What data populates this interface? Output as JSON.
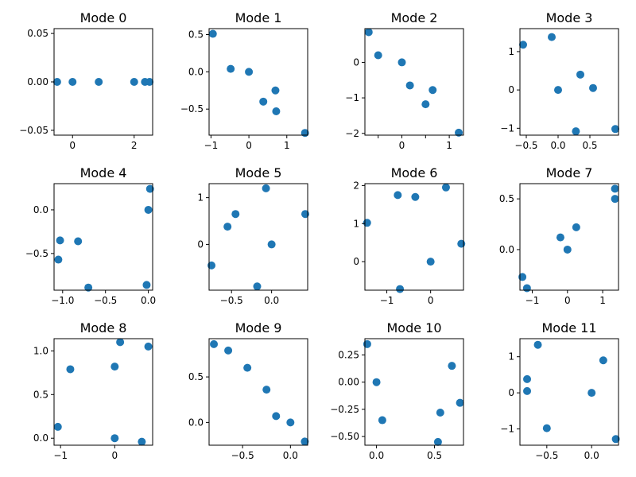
{
  "figure": {
    "background": "#ffffff",
    "marker_color": "#1f77b4"
  },
  "chart_data": [
    {
      "type": "scatter",
      "title": "Mode 0",
      "xlim": [
        -0.6,
        2.6
      ],
      "ylim": [
        -0.055,
        0.055
      ],
      "xticks": [
        0,
        2
      ],
      "xtick_labels": [
        "0",
        "2"
      ],
      "yticks": [
        -0.05,
        0,
        0.05
      ],
      "ytick_labels": [
        "−0.05",
        "0.00",
        "0.05"
      ],
      "x": [
        -0.5,
        0,
        0.85,
        2,
        2.35,
        2.5
      ],
      "y": [
        0,
        0,
        0,
        0,
        0,
        0
      ]
    },
    {
      "type": "scatter",
      "title": "Mode 1",
      "xlim": [
        -1.05,
        1.55
      ],
      "ylim": [
        -0.85,
        0.58
      ],
      "xticks": [
        -1,
        0,
        1
      ],
      "xtick_labels": [
        "−1",
        "0",
        "1"
      ],
      "yticks": [
        -0.5,
        0,
        0.5
      ],
      "ytick_labels": [
        "−0.5",
        "0.0",
        "0.5"
      ],
      "x": [
        -0.95,
        -0.48,
        0,
        0.7,
        0.38,
        0.72,
        1.48
      ],
      "y": [
        0.51,
        0.04,
        0,
        -0.25,
        -0.4,
        -0.53,
        -0.82
      ]
    },
    {
      "type": "scatter",
      "title": "Mode 2",
      "xlim": [
        -0.78,
        1.3
      ],
      "ylim": [
        -2.05,
        0.95
      ],
      "xticks": [
        -0.5,
        0,
        0.5,
        1
      ],
      "xtick_labels": [
        "",
        "0",
        "",
        "1"
      ],
      "yticks": [
        -2,
        -1,
        0
      ],
      "ytick_labels": [
        "−2",
        "−1",
        "0"
      ],
      "x": [
        -0.7,
        -0.5,
        0,
        0.17,
        0.65,
        0.5,
        1.2
      ],
      "y": [
        0.85,
        0.2,
        0,
        -0.65,
        -0.78,
        -1.18,
        -1.98
      ]
    },
    {
      "type": "scatter",
      "title": "Mode 3",
      "xlim": [
        -0.6,
        0.95
      ],
      "ylim": [
        -1.18,
        1.6
      ],
      "xticks": [
        -0.5,
        0,
        0.5
      ],
      "xtick_labels": [
        "−0.5",
        "0.0",
        "0.5"
      ],
      "yticks": [
        -1,
        0,
        1
      ],
      "ytick_labels": [
        "−1",
        "0",
        "1"
      ],
      "x": [
        -0.55,
        -0.1,
        0.35,
        0.55,
        0,
        0.28,
        0.9
      ],
      "y": [
        1.18,
        1.38,
        0.4,
        0.05,
        0,
        -1.08,
        -1.02
      ]
    },
    {
      "type": "scatter",
      "title": "Mode 4",
      "xlim": [
        -1.1,
        0.05
      ],
      "ylim": [
        -0.92,
        0.3
      ],
      "xticks": [
        -1,
        -0.5,
        0
      ],
      "xtick_labels": [
        "−1.0",
        "−0.5",
        "0.0"
      ],
      "yticks": [
        -0.5,
        0
      ],
      "ytick_labels": [
        "−0.5",
        "0.0"
      ],
      "x": [
        -1.03,
        -0.82,
        -1.05,
        -0.7,
        0.0,
        0.02,
        -0.02
      ],
      "y": [
        -0.35,
        -0.36,
        -0.57,
        -0.89,
        0,
        0.24,
        -0.86
      ]
    },
    {
      "type": "scatter",
      "title": "Mode 5",
      "xlim": [
        -0.78,
        0.45
      ],
      "ylim": [
        -0.98,
        1.3
      ],
      "xticks": [
        -0.5,
        0
      ],
      "xtick_labels": [
        "−0.5",
        "0.0"
      ],
      "yticks": [
        0,
        1
      ],
      "ytick_labels": [
        "0",
        "1"
      ],
      "x": [
        -0.75,
        -0.55,
        -0.45,
        -0.18,
        -0.07,
        0,
        0.42
      ],
      "y": [
        -0.45,
        0.38,
        0.65,
        -0.9,
        1.2,
        0,
        0.65
      ]
    },
    {
      "type": "scatter",
      "title": "Mode 6",
      "xlim": [
        -1.5,
        0.75
      ],
      "ylim": [
        -0.75,
        2.05
      ],
      "xticks": [
        -1,
        0
      ],
      "xtick_labels": [
        "−1",
        "0"
      ],
      "yticks": [
        0,
        1,
        2
      ],
      "ytick_labels": [
        "0",
        "1",
        "2"
      ],
      "x": [
        -1.45,
        -0.75,
        -0.35,
        0.35,
        0,
        -0.7,
        0.7
      ],
      "y": [
        1.02,
        1.75,
        1.7,
        1.95,
        0,
        -0.72,
        0.47
      ]
    },
    {
      "type": "scatter",
      "title": "Mode 7",
      "xlim": [
        -1.35,
        1.45
      ],
      "ylim": [
        -0.4,
        0.65
      ],
      "xticks": [
        -1,
        0,
        1
      ],
      "xtick_labels": [
        "−1",
        "0",
        "1"
      ],
      "yticks": [
        0,
        0.5
      ],
      "ytick_labels": [
        "0.0",
        "0.5"
      ],
      "x": [
        -1.28,
        -1.15,
        -0.2,
        0.25,
        0,
        1.35,
        1.35
      ],
      "y": [
        -0.27,
        -0.38,
        0.12,
        0.22,
        0,
        0.6,
        0.5
      ]
    },
    {
      "type": "scatter",
      "title": "Mode 8",
      "xlim": [
        -1.12,
        0.7
      ],
      "ylim": [
        -0.08,
        1.14
      ],
      "xticks": [
        -1,
        0
      ],
      "xtick_labels": [
        "−1",
        "0"
      ],
      "yticks": [
        0,
        0.5,
        1
      ],
      "ytick_labels": [
        "0.0",
        "0.5",
        "1.0"
      ],
      "x": [
        -1.05,
        -0.82,
        0,
        0.1,
        0.62,
        0.5,
        0
      ],
      "y": [
        0.13,
        0.79,
        0.82,
        1.1,
        1.05,
        -0.04,
        0
      ]
    },
    {
      "type": "scatter",
      "title": "Mode 9",
      "xlim": [
        -0.85,
        0.18
      ],
      "ylim": [
        -0.25,
        0.92
      ],
      "xticks": [
        -0.5,
        0
      ],
      "xtick_labels": [
        "−0.5",
        "0.0"
      ],
      "yticks": [
        0,
        0.5
      ],
      "ytick_labels": [
        "0.0",
        "0.5"
      ],
      "x": [
        -0.8,
        -0.65,
        -0.45,
        -0.25,
        -0.15,
        0,
        0.15
      ],
      "y": [
        0.86,
        0.79,
        0.6,
        0.36,
        0.07,
        0,
        -0.21
      ]
    },
    {
      "type": "scatter",
      "title": "Mode 10",
      "xlim": [
        -0.1,
        0.75
      ],
      "ylim": [
        -0.58,
        0.4
      ],
      "xticks": [
        0,
        0.5
      ],
      "xtick_labels": [
        "0.0",
        "0.5"
      ],
      "yticks": [
        -0.5,
        -0.25,
        0,
        0.25
      ],
      "ytick_labels": [
        "−0.50",
        "−0.25",
        "0.00",
        "0.25"
      ],
      "x": [
        -0.08,
        0,
        0.05,
        0.55,
        0.53,
        0.65,
        0.72
      ],
      "y": [
        0.35,
        0,
        -0.35,
        -0.28,
        -0.55,
        0.15,
        -0.19
      ]
    },
    {
      "type": "scatter",
      "title": "Mode 11",
      "xlim": [
        -0.8,
        0.3
      ],
      "ylim": [
        -1.45,
        1.5
      ],
      "xticks": [
        -0.5,
        0
      ],
      "xtick_labels": [
        "−0.5",
        "0.0"
      ],
      "yticks": [
        -1,
        0,
        1
      ],
      "ytick_labels": [
        "−1",
        "0",
        "1"
      ],
      "x": [
        -0.72,
        -0.6,
        -0.72,
        -0.5,
        0,
        0.13,
        0.27
      ],
      "y": [
        0.38,
        1.33,
        0.05,
        -0.98,
        0,
        0.9,
        -1.28
      ]
    }
  ]
}
